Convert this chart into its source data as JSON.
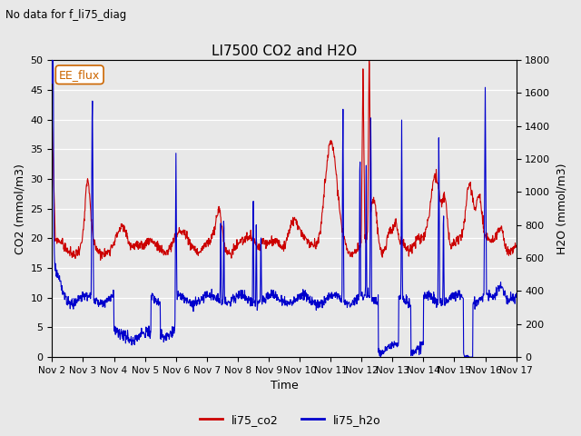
{
  "title": "LI7500 CO2 and H2O",
  "suptitle": "No data for f_li75_diag",
  "xlabel": "Time",
  "ylabel_left": "CO2 (mmol/m3)",
  "ylabel_right": "H2O (mmol/m3)",
  "ylim_left": [
    0,
    50
  ],
  "ylim_right": [
    0,
    1800
  ],
  "yticks_left": [
    0,
    5,
    10,
    15,
    20,
    25,
    30,
    35,
    40,
    45,
    50
  ],
  "yticks_right": [
    0,
    200,
    400,
    600,
    800,
    1000,
    1200,
    1400,
    1600,
    1800
  ],
  "xtick_labels": [
    "Nov 2",
    "Nov 3",
    "Nov 4",
    "Nov 5",
    "Nov 6",
    "Nov 7",
    "Nov 8",
    "Nov 9",
    "Nov 10",
    "Nov 11",
    "Nov 12",
    "Nov 13",
    "Nov 14",
    "Nov 15",
    "Nov 16",
    "Nov 17"
  ],
  "co2_color": "#cc0000",
  "h2o_color": "#0000cc",
  "bg_color": "#e8e8e8",
  "plot_bg_color": "#e8e8e8",
  "grid_color": "#ffffff",
  "annotation_box": "EE_flux",
  "annotation_color": "#cc6600",
  "legend_entries": [
    "li75_co2",
    "li75_h2o"
  ],
  "figsize": [
    6.4,
    4.8
  ],
  "dpi": 100
}
